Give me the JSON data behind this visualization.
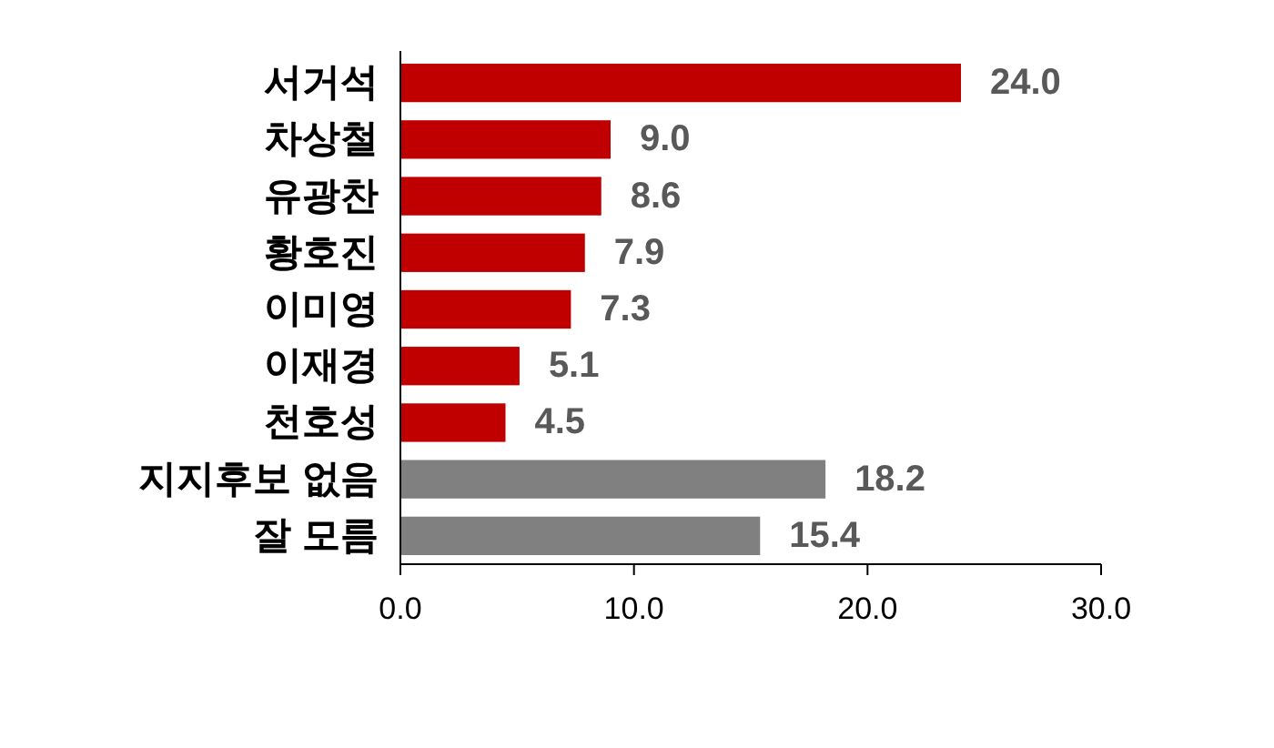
{
  "chart_data": {
    "type": "bar",
    "orientation": "horizontal",
    "categories": [
      "서거석",
      "차상철",
      "유광찬",
      "황호진",
      "이미영",
      "이재경",
      "천호성",
      "지지후보 없음",
      "잘 모름"
    ],
    "values": [
      24.0,
      9.0,
      8.6,
      7.9,
      7.3,
      5.1,
      4.5,
      18.2,
      15.4
    ],
    "colors": [
      "#c00000",
      "#c00000",
      "#c00000",
      "#c00000",
      "#c00000",
      "#c00000",
      "#c00000",
      "#808080",
      "#808080"
    ],
    "value_labels": [
      "24.0",
      "9.0",
      "8.6",
      "7.9",
      "7.3",
      "5.1",
      "4.5",
      "18.2",
      "15.4"
    ],
    "xlim": [
      0,
      30
    ],
    "xticks": [
      {
        "value": 0,
        "label": "0.0"
      },
      {
        "value": 10,
        "label": "10.0"
      },
      {
        "value": 20,
        "label": "20.0"
      },
      {
        "value": 30,
        "label": "30.0"
      }
    ],
    "grid": false
  }
}
